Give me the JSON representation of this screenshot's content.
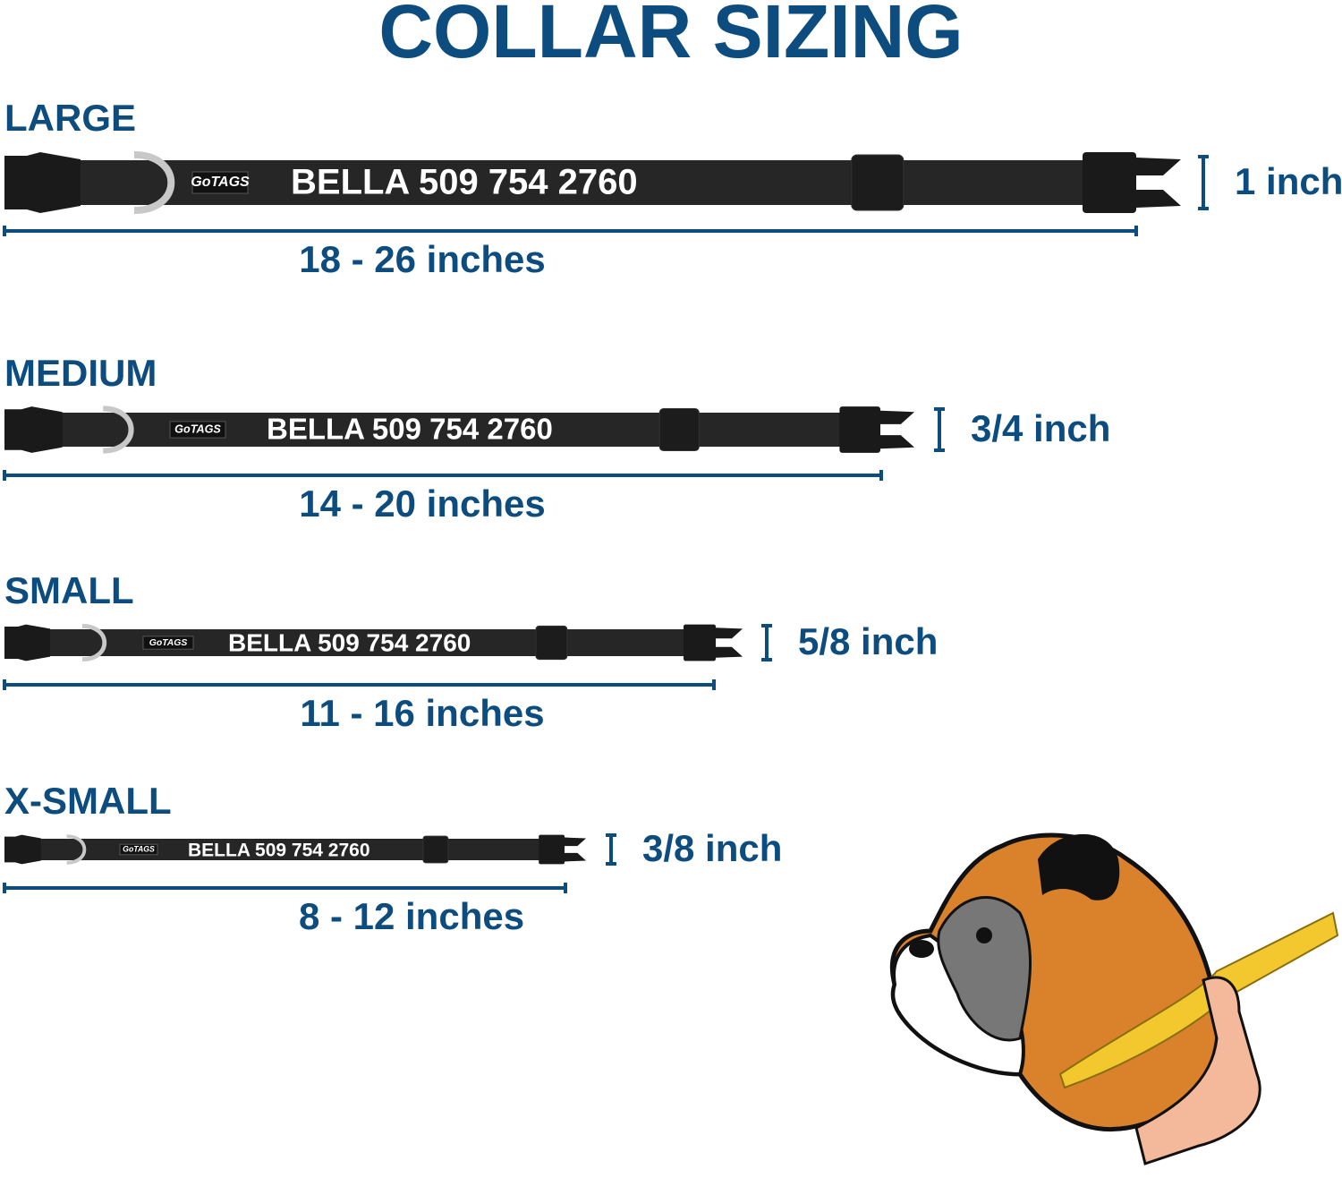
{
  "title": "COLLAR SIZING",
  "logo": "GoTAGS",
  "sizes": [
    {
      "name": "LARGE",
      "collar_text": "BELLA 509 754 2760",
      "width": "1 inch",
      "range": "18 - 26 inches"
    },
    {
      "name": "MEDIUM",
      "collar_text": "BELLA 509 754 2760",
      "width": "3/4 inch",
      "range": "14 - 20 inches"
    },
    {
      "name": "SMALL",
      "collar_text": "BELLA 509 754 2760",
      "width": "5/8 inch",
      "range": "11 - 16 inches"
    },
    {
      "name": "X-SMALL",
      "collar_text": "BELLA 509 754 2760",
      "width": "3/8 inch",
      "range": "8 - 12 inches"
    }
  ]
}
